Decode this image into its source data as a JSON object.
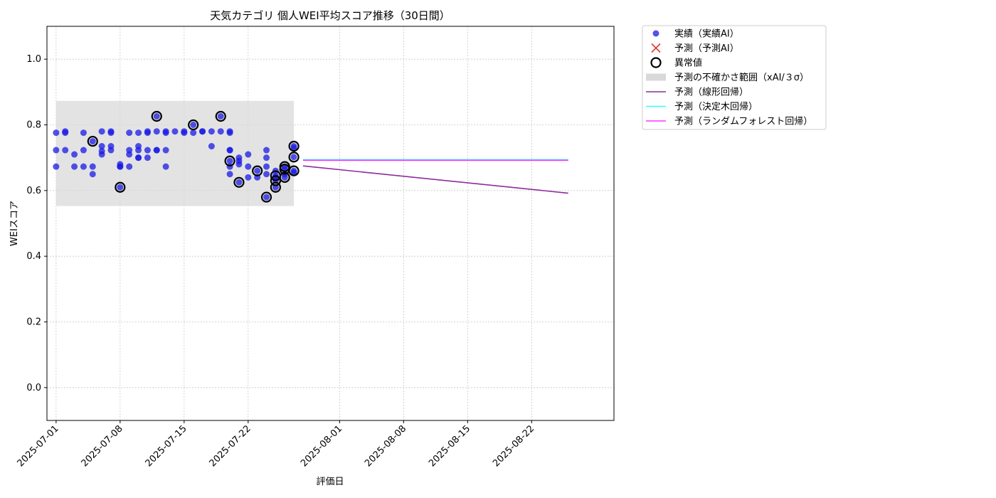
{
  "chart_data": {
    "type": "scatter",
    "title": "天気カテゴリ 個人WEI平均スコア推移（30日間）",
    "xlabel": "評価日",
    "ylabel": "WEIスコア",
    "ylim": [
      -0.1,
      1.1
    ],
    "xlim": [
      "2025-06-30",
      "2025-08-31"
    ],
    "y_ticks": [
      "0.0",
      "0.2",
      "0.4",
      "0.6",
      "0.8",
      "1.0"
    ],
    "x_ticks": [
      "2025-07-01",
      "2025-07-08",
      "2025-07-15",
      "2025-07-22",
      "2025-08-01",
      "2025-08-08",
      "2025-08-15",
      "2025-08-22"
    ],
    "grid": true,
    "legend_position": "outside-upper-right",
    "colors": {
      "actual": "#1a1ae6",
      "predicted_ai": "#e63232",
      "anomaly": "#000000",
      "uncertainty": "#d9d9d9",
      "linear": "#8e2a9e",
      "tree": "#33ffff",
      "forest": "#ff33ff"
    },
    "uncertainty_band": {
      "x_start": "2025-07-01",
      "x_end": "2025-07-27",
      "y_low": 0.553,
      "y_high": 0.873
    },
    "series": [
      {
        "name": "実績（実績AI）",
        "kind": "scatter",
        "points": [
          [
            "2025-07-01",
            0.723
          ],
          [
            "2025-07-01",
            0.673
          ],
          [
            "2025-07-01",
            0.776
          ],
          [
            "2025-07-02",
            0.78
          ],
          [
            "2025-07-02",
            0.723
          ],
          [
            "2025-07-02",
            0.776
          ],
          [
            "2025-07-03",
            0.71
          ],
          [
            "2025-07-03",
            0.673
          ],
          [
            "2025-07-04",
            0.723
          ],
          [
            "2025-07-04",
            0.776
          ],
          [
            "2025-07-04",
            0.673
          ],
          [
            "2025-07-05",
            0.673
          ],
          [
            "2025-07-05",
            0.65
          ],
          [
            "2025-07-05",
            0.75
          ],
          [
            "2025-07-06",
            0.735
          ],
          [
            "2025-07-06",
            0.71
          ],
          [
            "2025-07-06",
            0.72
          ],
          [
            "2025-07-06",
            0.78
          ],
          [
            "2025-07-07",
            0.78
          ],
          [
            "2025-07-07",
            0.735
          ],
          [
            "2025-07-07",
            0.776
          ],
          [
            "2025-07-07",
            0.723
          ],
          [
            "2025-07-08",
            0.673
          ],
          [
            "2025-07-08",
            0.61
          ],
          [
            "2025-07-08",
            0.68
          ],
          [
            "2025-07-08",
            0.673
          ],
          [
            "2025-07-09",
            0.776
          ],
          [
            "2025-07-09",
            0.723
          ],
          [
            "2025-07-09",
            0.673
          ],
          [
            "2025-07-09",
            0.71
          ],
          [
            "2025-07-10",
            0.7
          ],
          [
            "2025-07-10",
            0.776
          ],
          [
            "2025-07-10",
            0.735
          ],
          [
            "2025-07-10",
            0.723
          ],
          [
            "2025-07-10",
            0.7
          ],
          [
            "2025-07-11",
            0.776
          ],
          [
            "2025-07-11",
            0.78
          ],
          [
            "2025-07-11",
            0.7
          ],
          [
            "2025-07-11",
            0.723
          ],
          [
            "2025-07-12",
            0.78
          ],
          [
            "2025-07-12",
            0.723
          ],
          [
            "2025-07-12",
            0.723
          ],
          [
            "2025-07-12",
            0.826
          ],
          [
            "2025-07-13",
            0.78
          ],
          [
            "2025-07-13",
            0.776
          ],
          [
            "2025-07-13",
            0.723
          ],
          [
            "2025-07-13",
            0.673
          ],
          [
            "2025-07-14",
            0.78
          ],
          [
            "2025-07-15",
            0.776
          ],
          [
            "2025-07-15",
            0.78
          ],
          [
            "2025-07-16",
            0.8
          ],
          [
            "2025-07-16",
            0.776
          ],
          [
            "2025-07-17",
            0.78
          ],
          [
            "2025-07-17",
            0.78
          ],
          [
            "2025-07-18",
            0.735
          ],
          [
            "2025-07-18",
            0.78
          ],
          [
            "2025-07-19",
            0.826
          ],
          [
            "2025-07-19",
            0.78
          ],
          [
            "2025-07-20",
            0.78
          ],
          [
            "2025-07-20",
            0.776
          ],
          [
            "2025-07-20",
            0.723
          ],
          [
            "2025-07-20",
            0.69
          ],
          [
            "2025-07-20",
            0.673
          ],
          [
            "2025-07-20",
            0.65
          ],
          [
            "2025-07-20",
            0.723
          ],
          [
            "2025-07-21",
            0.7
          ],
          [
            "2025-07-21",
            0.625
          ],
          [
            "2025-07-21",
            0.69
          ],
          [
            "2025-07-21",
            0.68
          ],
          [
            "2025-07-22",
            0.64
          ],
          [
            "2025-07-22",
            0.71
          ],
          [
            "2025-07-22",
            0.673
          ],
          [
            "2025-07-23",
            0.66
          ],
          [
            "2025-07-23",
            0.64
          ],
          [
            "2025-07-24",
            0.723
          ],
          [
            "2025-07-24",
            0.7
          ],
          [
            "2025-07-24",
            0.673
          ],
          [
            "2025-07-24",
            0.65
          ],
          [
            "2025-07-24",
            0.58
          ],
          [
            "2025-07-25",
            0.63
          ],
          [
            "2025-07-25",
            0.61
          ],
          [
            "2025-07-25",
            0.645
          ],
          [
            "2025-07-25",
            0.64
          ],
          [
            "2025-07-25",
            0.66
          ],
          [
            "2025-07-26",
            0.665
          ],
          [
            "2025-07-26",
            0.64
          ],
          [
            "2025-07-26",
            0.65
          ],
          [
            "2025-07-26",
            0.673
          ],
          [
            "2025-07-27",
            0.655
          ],
          [
            "2025-07-27",
            0.66
          ],
          [
            "2025-07-27",
            0.735
          ],
          [
            "2025-07-27",
            0.73
          ],
          [
            "2025-07-27",
            0.702
          ]
        ]
      },
      {
        "name": "予測（予測AI）",
        "kind": "scatter-x",
        "points": []
      },
      {
        "name": "異常値",
        "kind": "scatter-ring",
        "points": [
          [
            "2025-07-05",
            0.75
          ],
          [
            "2025-07-08",
            0.61
          ],
          [
            "2025-07-12",
            0.826
          ],
          [
            "2025-07-16",
            0.8
          ],
          [
            "2025-07-19",
            0.826
          ],
          [
            "2025-07-20",
            0.69
          ],
          [
            "2025-07-21",
            0.625
          ],
          [
            "2025-07-23",
            0.66
          ],
          [
            "2025-07-24",
            0.58
          ],
          [
            "2025-07-25",
            0.63
          ],
          [
            "2025-07-25",
            0.61
          ],
          [
            "2025-07-25",
            0.645
          ],
          [
            "2025-07-26",
            0.64
          ],
          [
            "2025-07-26",
            0.665
          ],
          [
            "2025-07-26",
            0.673
          ],
          [
            "2025-07-27",
            0.735
          ],
          [
            "2025-07-27",
            0.702
          ],
          [
            "2025-07-27",
            0.66
          ]
        ]
      },
      {
        "name": "予測の不確かさ範囲（xAI/３σ）",
        "kind": "band",
        "points": []
      },
      {
        "name": "予測（線形回帰）",
        "kind": "line",
        "points": [
          [
            "2025-07-28",
            0.675
          ],
          [
            "2025-08-26",
            0.592
          ]
        ]
      },
      {
        "name": "予測（決定木回帰）",
        "kind": "line",
        "points": [
          [
            "2025-07-28",
            0.694
          ],
          [
            "2025-08-26",
            0.694
          ]
        ]
      },
      {
        "name": "予測（ランダムフォレスト回帰）",
        "kind": "line",
        "points": [
          [
            "2025-07-28",
            0.692
          ],
          [
            "2025-08-26",
            0.692
          ]
        ]
      }
    ]
  }
}
